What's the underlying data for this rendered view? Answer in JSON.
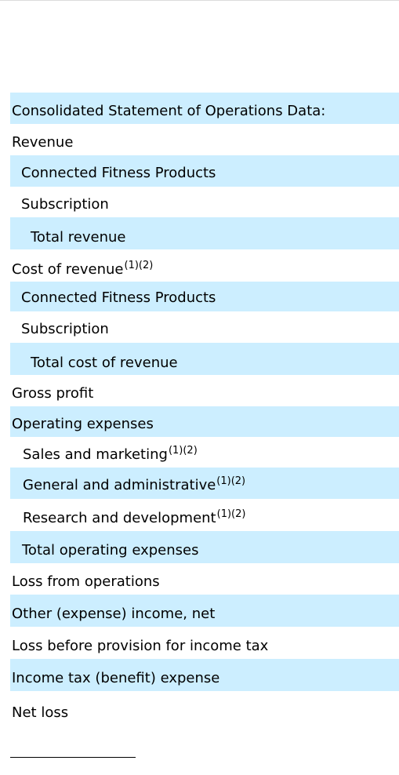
{
  "table": {
    "section_heading": "Consolidated Statement of Operations Data:",
    "revenue": "Revenue",
    "revenue_connected_fitness": "Connected Fitness Products",
    "revenue_subscription": "Subscription",
    "total_revenue": "Total revenue",
    "cost_of_revenue": "Cost of revenue",
    "cost_of_revenue_note": "(1)(2)",
    "cost_connected_fitness": "Connected Fitness Products",
    "cost_subscription": "Subscription",
    "total_cost_of_revenue": "Total cost of revenue",
    "gross_profit": "Gross profit",
    "operating_expenses": "Operating expenses",
    "sales_and_marketing": "Sales and marketing",
    "sales_and_marketing_note": "(1)(2)",
    "general_and_administrative": "General and administrative",
    "general_and_administrative_note": "(1)(2)",
    "research_and_development": "Research and development",
    "research_and_development_note": "(1)(2)",
    "total_operating_expenses": "Total operating expenses",
    "loss_from_operations": "Loss from operations",
    "other_income_net": "Other (expense) income, net",
    "loss_before_tax": "Loss before provision for income tax",
    "income_tax": "Income tax (benefit) expense",
    "net_loss": "Net loss"
  },
  "colors": {
    "shaded_row": "#cceeff",
    "text": "#000000"
  }
}
